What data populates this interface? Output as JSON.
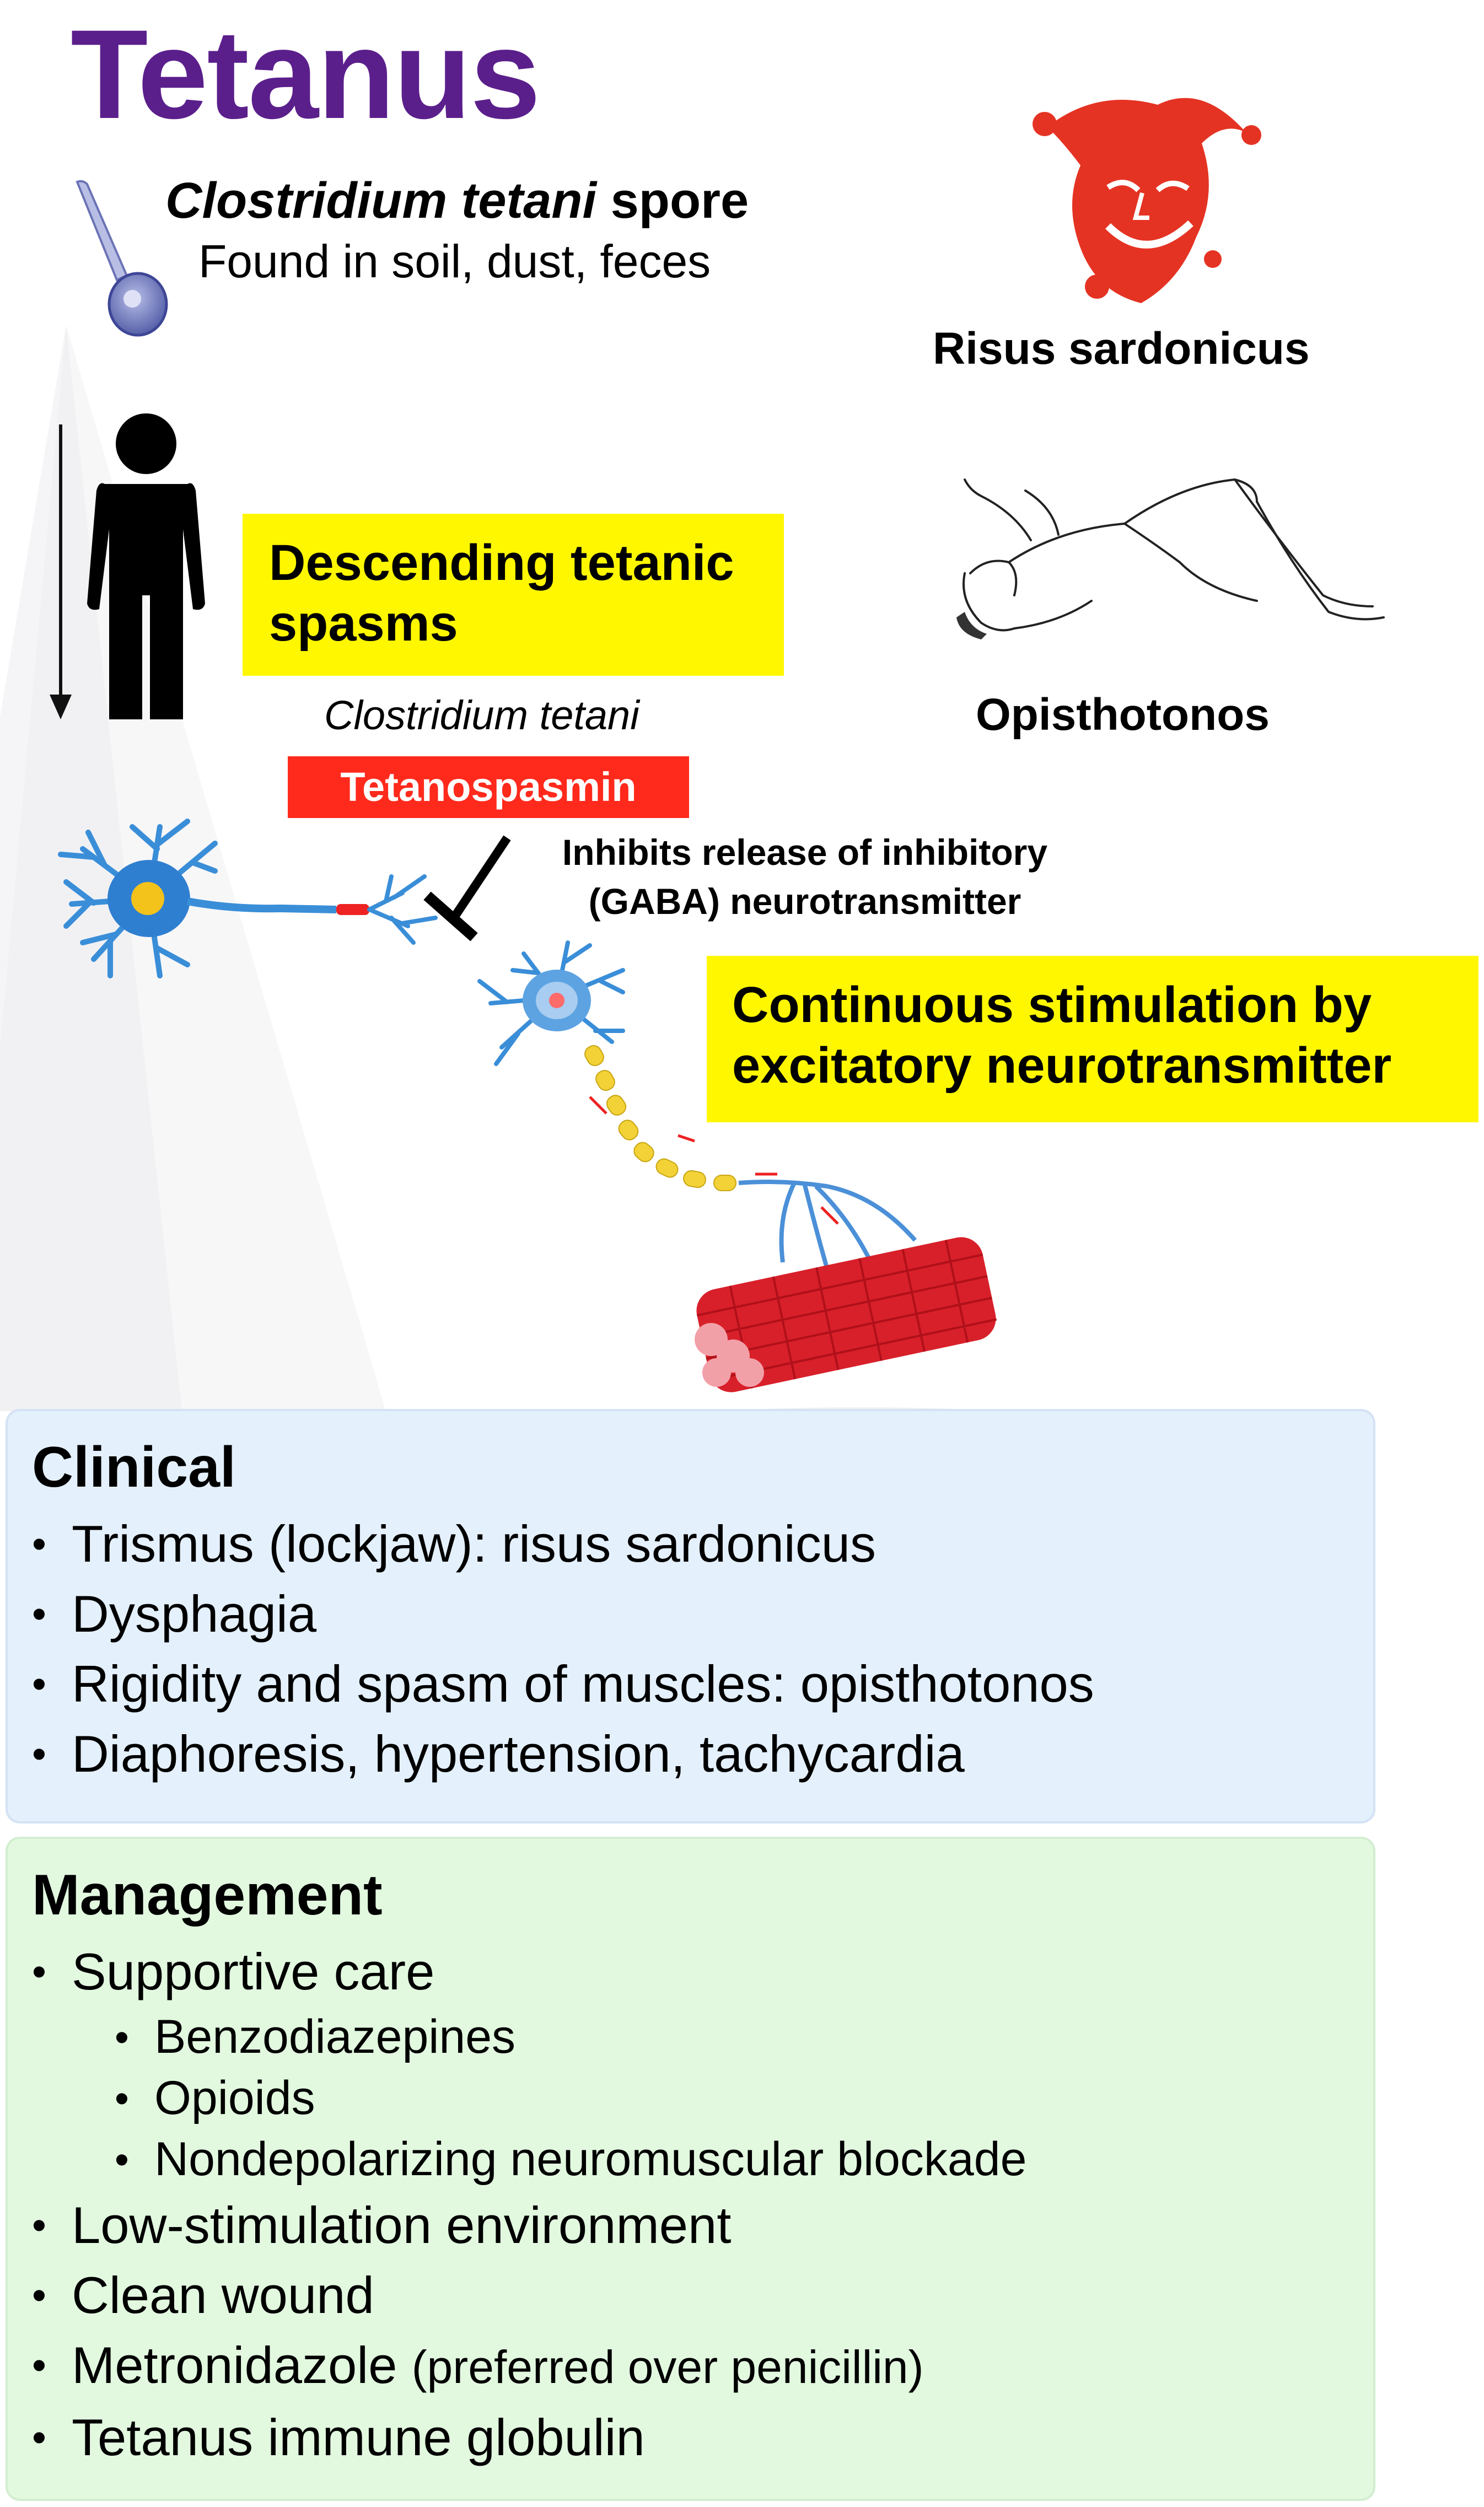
{
  "title": "Tetanus",
  "spore": {
    "name_italic": "Clostridium tetani",
    "name_rest": "spore",
    "found": "Found in soil, dust, feces"
  },
  "right_labels": {
    "risus": "Risus sardonicus",
    "opisthotonos": "Opisthotonos"
  },
  "descending_box": "Descending tetanic spasms",
  "organism_label": "Clostridium tetani",
  "toxin_label": "Tetanospasmin",
  "inhibits": {
    "line1": "Inhibits release of inhibitory",
    "line2": "(GABA) neurotransmitter"
  },
  "continuous_box": "Continuous stimulation by excitatory neurotransmitter",
  "clinical": {
    "heading": "Clinical",
    "items": [
      "Trismus (lockjaw): risus sardonicus",
      "Dysphagia",
      "Rigidity and spasm of muscles: opisthotonos",
      "Diaphoresis, hypertension, tachycardia"
    ]
  },
  "management": {
    "heading": "Management",
    "items": [
      "Supportive care",
      "Benzodiazepines",
      "Opioids",
      "Nondepolarizing neuromuscular blockade",
      "Low-stimulation environment",
      "Clean wound",
      "Metronidazole",
      "Tetanus immune globulin"
    ],
    "metronidazole_note": "(preferred over penicillin)"
  },
  "colors": {
    "title": "#5b1f8c",
    "highlight_yellow": "#fff700",
    "toxin_red": "#ff2a1c",
    "clinical_bg": "#e4f0fc",
    "management_bg": "#e2f9e0"
  }
}
